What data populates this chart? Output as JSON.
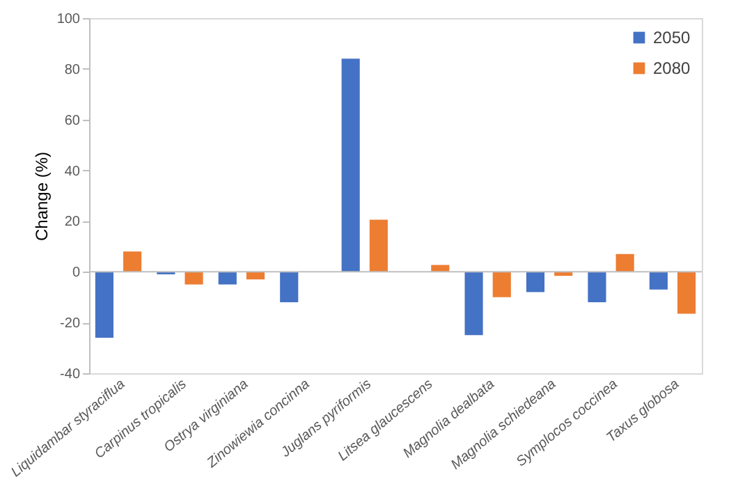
{
  "chart_data": {
    "type": "bar",
    "ylabel": "Change (%)",
    "categories": [
      "Liquidambar styraciflua",
      "Carpinus tropicalis",
      "Ostrya virginiana",
      "Zinowiewia concinna",
      "Juglans pyriformis",
      "Litsea glaucescens",
      "Magnolia dealbata",
      "Magnolia schiedeana",
      "Symplocos coccinea",
      "Taxus globosa"
    ],
    "series": [
      {
        "name": "2050",
        "color": "#4472c4",
        "values": [
          -26,
          -1,
          -5,
          -12,
          84,
          0,
          -25,
          -8,
          -12,
          -7
        ]
      },
      {
        "name": "2080",
        "color": "#ed7d31",
        "values": [
          8,
          -5,
          -3,
          0,
          20.5,
          2.7,
          -10,
          -1.6,
          7,
          -16.5
        ]
      }
    ],
    "ylim": [
      -40,
      100
    ],
    "yticks": [
      -40,
      -20,
      0,
      20,
      40,
      60,
      80,
      100
    ],
    "legend": "top right"
  }
}
